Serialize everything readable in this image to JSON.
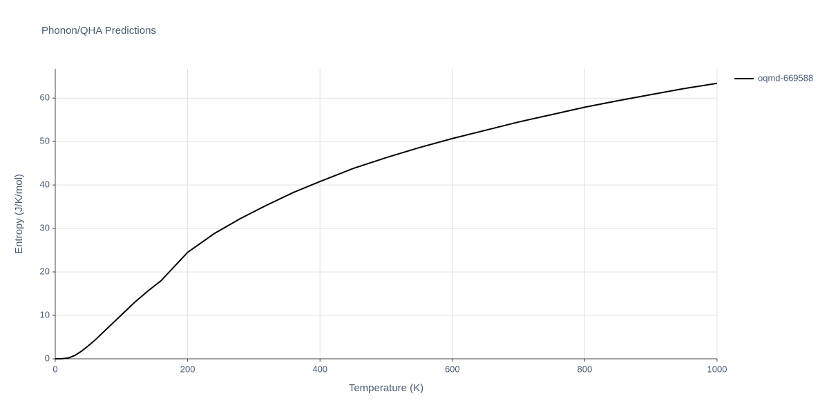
{
  "chart_data": {
    "type": "line",
    "title": "Phonon/QHA Predictions",
    "x_label": "Temperature (K)",
    "y_label": "Entropy (J/K/mol)",
    "x": [
      0,
      10,
      20,
      30,
      40,
      50,
      60,
      80,
      100,
      120,
      140,
      160,
      200,
      240,
      280,
      320,
      360,
      400,
      450,
      500,
      550,
      600,
      650,
      700,
      750,
      800,
      850,
      900,
      950,
      1000
    ],
    "series": [
      {
        "name": "oqmd-669588",
        "color": "#000000",
        "values": [
          0,
          0.02,
          0.2,
          0.8,
          1.8,
          3.0,
          4.3,
          7.2,
          10.1,
          13.0,
          15.6,
          18.0,
          24.5,
          28.8,
          32.3,
          35.4,
          38.3,
          40.8,
          43.8,
          46.3,
          48.6,
          50.7,
          52.6,
          54.5,
          56.2,
          57.9,
          59.4,
          60.8,
          62.2,
          63.4
        ]
      }
    ],
    "xlim": [
      0,
      1000
    ],
    "xticks": [
      0,
      200,
      400,
      600,
      800,
      1000
    ],
    "ylim": [
      0,
      66.7
    ],
    "yticks": [
      0,
      10,
      20,
      30,
      40,
      50,
      60
    ],
    "grid": true,
    "legend": "right"
  }
}
